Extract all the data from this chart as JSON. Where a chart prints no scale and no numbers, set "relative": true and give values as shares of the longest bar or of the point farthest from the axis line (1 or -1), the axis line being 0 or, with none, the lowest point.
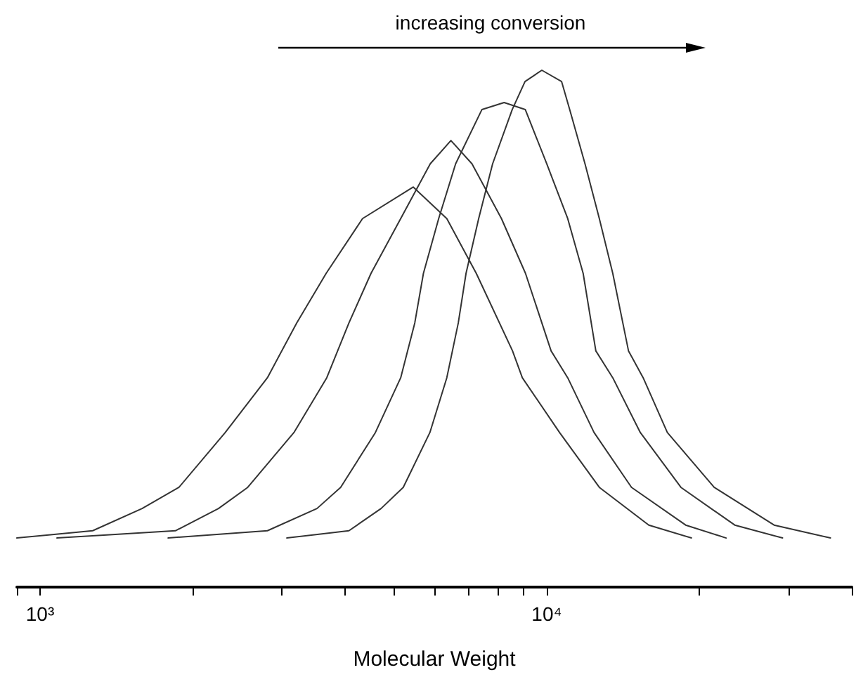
{
  "chart_data": {
    "type": "line",
    "xlabel": "Molecular Weight",
    "annotations": [
      "increasing conversion"
    ],
    "relative": true,
    "log": "x",
    "grid": false,
    "marker": "none",
    "line_style": "solid",
    "tick_labels": "x",
    "xlim": [
      900,
      40000
    ],
    "xticks": [
      {
        "value": 900,
        "label": null
      },
      {
        "value": 1000,
        "label": "10³"
      },
      {
        "value": 2000,
        "label": null
      },
      {
        "value": 3000,
        "label": null
      },
      {
        "value": 4000,
        "label": null
      },
      {
        "value": 5000,
        "label": null
      },
      {
        "value": 6000,
        "label": null
      },
      {
        "value": 7000,
        "label": null
      },
      {
        "value": 8000,
        "label": null
      },
      {
        "value": 9000,
        "label": null
      },
      {
        "value": 10000,
        "label": "10⁴"
      },
      {
        "value": 20000,
        "label": null
      },
      {
        "value": 30000,
        "label": null
      },
      {
        "value": 40000,
        "label": null
      }
    ],
    "series": [
      {
        "color": "#333333",
        "x": [
          900,
          1270,
          1590,
          1880,
          2320,
          2810,
          3210,
          3670,
          4330,
          5450,
          6350,
          7260,
          8560,
          8950,
          10600,
          12700,
          15900,
          19300
        ],
        "values": [
          0.095,
          0.109,
          0.152,
          0.193,
          0.299,
          0.405,
          0.511,
          0.607,
          0.713,
          0.774,
          0.713,
          0.607,
          0.457,
          0.405,
          0.299,
          0.193,
          0.12,
          0.095
        ]
      },
      {
        "color": "#333333",
        "x": [
          1080,
          1850,
          2250,
          2570,
          3170,
          3680,
          4070,
          4500,
          5150,
          5890,
          6470,
          7120,
          8140,
          9080,
          10200,
          11000,
          12400,
          14700,
          18800,
          22600
        ],
        "values": [
          0.095,
          0.109,
          0.152,
          0.193,
          0.299,
          0.405,
          0.511,
          0.607,
          0.713,
          0.819,
          0.864,
          0.819,
          0.713,
          0.607,
          0.457,
          0.405,
          0.299,
          0.193,
          0.12,
          0.095
        ]
      },
      {
        "color": "#333333",
        "x": [
          1790,
          2810,
          3520,
          3920,
          4590,
          5150,
          5490,
          5710,
          6120,
          6610,
          7450,
          8240,
          9070,
          10000,
          11000,
          11800,
          12500,
          13500,
          15300,
          18400,
          23500,
          29200
        ],
        "values": [
          0.095,
          0.109,
          0.152,
          0.193,
          0.299,
          0.405,
          0.511,
          0.607,
          0.713,
          0.819,
          0.924,
          0.9375,
          0.924,
          0.819,
          0.713,
          0.607,
          0.457,
          0.405,
          0.299,
          0.193,
          0.12,
          0.095
        ]
      },
      {
        "color": "#333333",
        "x": [
          3070,
          4070,
          4710,
          5210,
          5880,
          6350,
          6690,
          6930,
          7340,
          7820,
          8550,
          9060,
          9780,
          10700,
          11100,
          11900,
          12700,
          13500,
          14500,
          15500,
          17300,
          21400,
          28100,
          36300
        ],
        "values": [
          0.095,
          0.109,
          0.152,
          0.193,
          0.299,
          0.405,
          0.511,
          0.607,
          0.713,
          0.819,
          0.924,
          0.978,
          1,
          0.978,
          0.924,
          0.819,
          0.713,
          0.607,
          0.457,
          0.405,
          0.299,
          0.193,
          0.12,
          0.095
        ]
      }
    ]
  }
}
